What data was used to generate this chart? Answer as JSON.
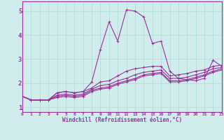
{
  "xlabel": "Windchill (Refroidissement éolien,°C)",
  "background_color": "#d0ecec",
  "line_color": "#993399",
  "xlim": [
    0,
    23
  ],
  "ylim": [
    0.8,
    5.4
  ],
  "xticks": [
    0,
    1,
    2,
    3,
    4,
    5,
    6,
    7,
    8,
    9,
    10,
    11,
    12,
    13,
    14,
    15,
    16,
    17,
    18,
    19,
    20,
    21,
    22,
    23
  ],
  "yticks": [
    1,
    2,
    3,
    4,
    5
  ],
  "grid_color": "#b0d8d8",
  "series": [
    [
      1.45,
      1.3,
      1.3,
      1.3,
      1.6,
      1.65,
      1.6,
      1.65,
      1.8,
      2.05,
      2.1,
      2.3,
      2.5,
      2.6,
      2.65,
      2.7,
      2.7,
      2.3,
      2.35,
      2.4,
      2.5,
      2.55,
      2.7,
      2.75
    ],
    [
      1.45,
      1.3,
      1.3,
      1.3,
      1.5,
      1.55,
      1.5,
      1.55,
      1.75,
      1.9,
      1.95,
      2.1,
      2.2,
      2.35,
      2.45,
      2.5,
      2.55,
      2.2,
      2.2,
      2.25,
      2.35,
      2.45,
      2.6,
      2.65
    ],
    [
      1.45,
      1.3,
      1.3,
      1.3,
      1.45,
      1.5,
      1.45,
      1.5,
      1.7,
      1.8,
      1.85,
      2.0,
      2.1,
      2.2,
      2.35,
      2.4,
      2.45,
      2.1,
      2.1,
      2.15,
      2.25,
      2.35,
      2.5,
      2.6
    ],
    [
      1.45,
      1.3,
      1.3,
      1.3,
      1.4,
      1.45,
      1.4,
      1.45,
      1.65,
      1.75,
      1.8,
      1.95,
      2.05,
      2.15,
      2.3,
      2.35,
      2.4,
      2.05,
      2.05,
      2.1,
      2.2,
      2.3,
      2.45,
      2.55
    ],
    [
      1.45,
      1.3,
      1.3,
      1.3,
      1.6,
      1.65,
      1.6,
      1.65,
      2.05,
      3.4,
      4.55,
      3.75,
      5.05,
      5.0,
      4.75,
      3.65,
      3.75,
      2.5,
      2.2,
      2.15,
      2.1,
      2.2,
      2.95,
      2.7
    ]
  ],
  "marker": "+",
  "markersize": 3,
  "linewidth": 0.8
}
